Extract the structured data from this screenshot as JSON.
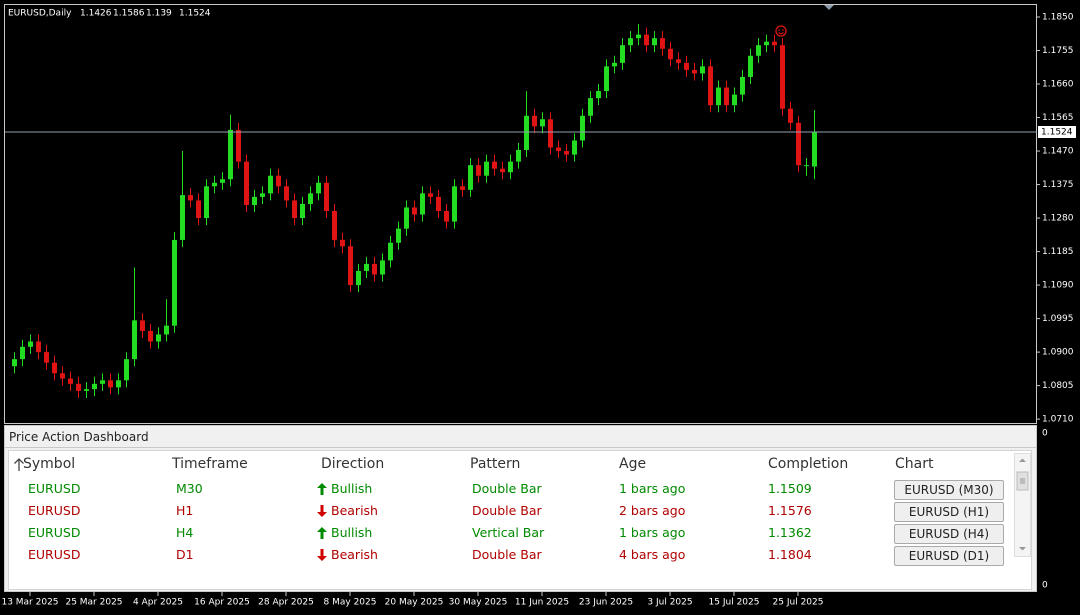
{
  "chart_data": {
    "type": "candlestick",
    "title": "EURUSD,Daily",
    "up_color": "#22dd22",
    "down_color": "#e01414",
    "ylim": [
      1.0699,
      1.1884
    ],
    "yticks": [
      {
        "value": 1.185,
        "label": "1.1850"
      },
      1.1755,
      {
        "value": 1.166,
        "label": "1.1660"
      },
      1.1565,
      {
        "value": 1.147,
        "label": "1.1470"
      },
      1.1375,
      {
        "value": 1.128,
        "label": "1.1280"
      },
      1.1185,
      {
        "value": 1.109,
        "label": "1.1090"
      },
      1.0995,
      {
        "value": 1.09,
        "label": "1.0900"
      },
      1.0805,
      {
        "value": 1.071,
        "label": "1.0710"
      }
    ],
    "grid": false,
    "current_price": 1.1524,
    "xlabels": [
      "13 Mar 2025",
      "25 Mar 2025",
      "4 Apr 2025",
      "16 Apr 2025",
      "28 Apr 2025",
      "8 May 2025",
      "20 May 2025",
      "30 May 2025",
      "11 Jun 2025",
      "23 Jun 2025",
      "3 Jul 2025",
      "15 Jul 2025",
      "25 Jul 2025"
    ],
    "candles": [
      [
        1.086,
        1.09,
        1.084,
        1.088
      ],
      [
        1.088,
        1.0935,
        1.086,
        1.0915
      ],
      [
        1.0915,
        1.095,
        1.0895,
        1.093
      ],
      [
        1.093,
        1.095,
        1.088,
        1.09
      ],
      [
        1.09,
        1.092,
        1.085,
        1.087
      ],
      [
        1.087,
        1.089,
        1.082,
        1.084
      ],
      [
        1.084,
        1.086,
        1.0805,
        1.0825
      ],
      [
        1.0825,
        1.0845,
        1.079,
        1.081
      ],
      [
        1.081,
        1.083,
        1.077,
        1.079
      ],
      [
        1.079,
        1.0815,
        1.077,
        1.0795
      ],
      [
        1.0795,
        1.083,
        1.0775,
        1.081
      ],
      [
        1.081,
        1.084,
        1.079,
        1.082
      ],
      [
        1.082,
        1.084,
        1.078,
        1.08
      ],
      [
        1.08,
        1.084,
        1.078,
        1.082
      ],
      [
        1.082,
        1.09,
        1.08,
        1.088
      ],
      [
        1.088,
        1.114,
        1.086,
        1.099
      ],
      [
        1.099,
        1.101,
        1.094,
        1.096
      ],
      [
        1.096,
        1.098,
        1.091,
        1.093
      ],
      [
        1.093,
        1.097,
        1.091,
        1.095
      ],
      [
        1.095,
        1.105,
        1.093,
        1.0975
      ],
      [
        1.0975,
        1.124,
        1.0955,
        1.1218
      ],
      [
        1.1218,
        1.147,
        1.1198,
        1.1345
      ],
      [
        1.1345,
        1.1365,
        1.131,
        1.133
      ],
      [
        1.133,
        1.135,
        1.126,
        1.128
      ],
      [
        1.128,
        1.139,
        1.126,
        1.137
      ],
      [
        1.137,
        1.14,
        1.135,
        1.138
      ],
      [
        1.138,
        1.141,
        1.136,
        1.139
      ],
      [
        1.139,
        1.1573,
        1.137,
        1.153
      ],
      [
        1.153,
        1.155,
        1.142,
        1.144
      ],
      [
        1.144,
        1.146,
        1.1297,
        1.1317
      ],
      [
        1.1317,
        1.136,
        1.1297,
        1.134
      ],
      [
        1.134,
        1.137,
        1.132,
        1.135
      ],
      [
        1.135,
        1.142,
        1.133,
        1.14
      ],
      [
        1.14,
        1.142,
        1.135,
        1.137
      ],
      [
        1.137,
        1.139,
        1.131,
        1.133
      ],
      [
        1.133,
        1.135,
        1.126,
        1.128
      ],
      [
        1.128,
        1.134,
        1.126,
        1.132
      ],
      [
        1.132,
        1.137,
        1.13,
        1.135
      ],
      [
        1.135,
        1.14,
        1.133,
        1.138
      ],
      [
        1.138,
        1.14,
        1.128,
        1.13
      ],
      [
        1.13,
        1.132,
        1.1198,
        1.1218
      ],
      [
        1.1218,
        1.1238,
        1.118,
        1.12
      ],
      [
        1.12,
        1.122,
        1.107,
        1.109
      ],
      [
        1.109,
        1.115,
        1.107,
        1.113
      ],
      [
        1.113,
        1.117,
        1.111,
        1.115
      ],
      [
        1.115,
        1.117,
        1.11,
        1.112
      ],
      [
        1.112,
        1.118,
        1.11,
        1.116
      ],
      [
        1.116,
        1.123,
        1.114,
        1.121
      ],
      [
        1.121,
        1.127,
        1.119,
        1.125
      ],
      [
        1.125,
        1.133,
        1.123,
        1.131
      ],
      [
        1.131,
        1.133,
        1.127,
        1.129
      ],
      [
        1.129,
        1.137,
        1.127,
        1.135
      ],
      [
        1.135,
        1.137,
        1.132,
        1.134
      ],
      [
        1.134,
        1.136,
        1.128,
        1.13
      ],
      [
        1.13,
        1.132,
        1.125,
        1.127
      ],
      [
        1.127,
        1.139,
        1.125,
        1.137
      ],
      [
        1.137,
        1.139,
        1.134,
        1.136
      ],
      [
        1.136,
        1.145,
        1.134,
        1.143
      ],
      [
        1.143,
        1.145,
        1.138,
        1.14
      ],
      [
        1.14,
        1.146,
        1.138,
        1.144
      ],
      [
        1.144,
        1.146,
        1.14,
        1.142
      ],
      [
        1.142,
        1.144,
        1.139,
        1.141
      ],
      [
        1.141,
        1.146,
        1.139,
        1.144
      ],
      [
        1.144,
        1.1493,
        1.142,
        1.1473
      ],
      [
        1.1473,
        1.164,
        1.1453,
        1.157
      ],
      [
        1.157,
        1.159,
        1.152,
        1.154
      ],
      [
        1.154,
        1.158,
        1.152,
        1.156
      ],
      [
        1.156,
        1.158,
        1.146,
        1.148
      ],
      [
        1.148,
        1.15,
        1.145,
        1.147
      ],
      [
        1.147,
        1.149,
        1.144,
        1.146
      ],
      [
        1.146,
        1.152,
        1.144,
        1.15
      ],
      [
        1.15,
        1.159,
        1.148,
        1.157
      ],
      [
        1.157,
        1.164,
        1.155,
        1.162
      ],
      [
        1.162,
        1.166,
        1.16,
        1.164
      ],
      [
        1.164,
        1.173,
        1.162,
        1.171
      ],
      [
        1.171,
        1.174,
        1.169,
        1.172
      ],
      [
        1.172,
        1.179,
        1.17,
        1.177
      ],
      [
        1.177,
        1.181,
        1.175,
        1.179
      ],
      [
        1.179,
        1.183,
        1.177,
        1.18
      ],
      [
        1.18,
        1.182,
        1.175,
        1.177
      ],
      [
        1.177,
        1.181,
        1.175,
        1.179
      ],
      [
        1.179,
        1.181,
        1.174,
        1.176
      ],
      [
        1.176,
        1.178,
        1.171,
        1.173
      ],
      [
        1.173,
        1.175,
        1.17,
        1.172
      ],
      [
        1.172,
        1.174,
        1.168,
        1.17
      ],
      [
        1.17,
        1.172,
        1.167,
        1.169
      ],
      [
        1.169,
        1.173,
        1.167,
        1.171
      ],
      [
        1.171,
        1.173,
        1.158,
        1.16
      ],
      [
        1.16,
        1.167,
        1.158,
        1.165
      ],
      [
        1.165,
        1.167,
        1.158,
        1.16
      ],
      [
        1.16,
        1.165,
        1.158,
        1.163
      ],
      [
        1.163,
        1.17,
        1.161,
        1.168
      ],
      [
        1.168,
        1.176,
        1.166,
        1.174
      ],
      [
        1.174,
        1.179,
        1.172,
        1.177
      ],
      [
        1.177,
        1.18,
        1.175,
        1.178
      ],
      [
        1.178,
        1.18,
        1.175,
        1.177
      ],
      [
        1.177,
        1.179,
        1.157,
        1.159
      ],
      [
        1.159,
        1.161,
        1.153,
        1.155
      ],
      [
        1.155,
        1.157,
        1.141,
        1.143
      ],
      [
        1.143,
        1.145,
        1.14,
        1.143
      ],
      [
        1.1426,
        1.1586,
        1.139,
        1.1524
      ]
    ]
  },
  "indicator_scale": [
    "0",
    "0"
  ],
  "dashboard": {
    "title": "Price Action Dashboard",
    "headers": [
      "Symbol",
      "Timeframe",
      "Direction",
      "Pattern",
      "Age",
      "Completion",
      "Chart"
    ],
    "rows": [
      [
        "EURUSD",
        "M30",
        "Bullish",
        "Double Bar",
        "1 bars ago",
        1.1509,
        "EURUSD (M30)"
      ],
      [
        "EURUSD",
        "H1",
        "Bearish",
        "Double Bar",
        "2 bars ago",
        1.1576,
        "EURUSD (H1)"
      ],
      [
        "EURUSD",
        "H4",
        "Bullish",
        "Vertical Bar",
        "1 bars ago",
        1.1362,
        "EURUSD (H4)"
      ],
      [
        "EURUSD",
        "D1",
        "Bearish",
        "Double Bar",
        "4 bars ago",
        1.1804,
        "EURUSD (D1)"
      ]
    ]
  }
}
